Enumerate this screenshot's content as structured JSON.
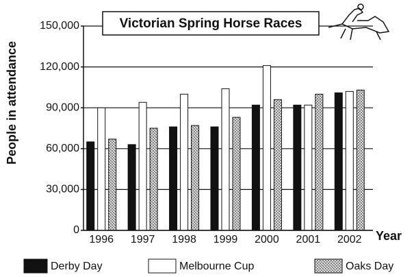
{
  "chart_data": {
    "type": "bar",
    "title": "Victorian Spring Horse Races",
    "x_label": "Year",
    "y_label": "People in attendance",
    "categories": [
      "1996",
      "1997",
      "1998",
      "1999",
      "2000",
      "2001",
      "2002"
    ],
    "series": [
      {
        "name": "Derby Day",
        "color": "#111111",
        "values": [
          65000,
          63000,
          76000,
          76000,
          92000,
          92000,
          101000
        ]
      },
      {
        "name": "Melbourne Cup",
        "color": "#ffffff",
        "values": [
          90000,
          94000,
          100000,
          104000,
          121000,
          92000,
          102000
        ]
      },
      {
        "name": "Oaks Day",
        "color": "#8c8c8c",
        "values": [
          67000,
          75000,
          77000,
          83000,
          96000,
          100000,
          103000
        ]
      }
    ],
    "ylim": [
      0,
      150000
    ],
    "yticks": [
      0,
      {
        "value": 30000,
        "label": "30,000"
      },
      {
        "value": 60000,
        "label": "60,000"
      },
      {
        "value": 90000,
        "label": "90,000"
      },
      {
        "value": 120000,
        "label": "120,000"
      },
      {
        "value": 150000,
        "label": "150,000"
      }
    ],
    "grid": true,
    "legend": "bottom"
  }
}
